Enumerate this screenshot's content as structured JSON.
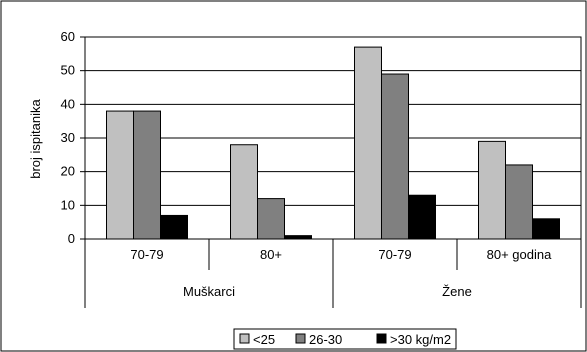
{
  "chart_data": {
    "type": "bar",
    "ylabel": "broj ispitanika",
    "xlabel": "",
    "title": "",
    "ylim": [
      0,
      60
    ],
    "yticks": [
      0,
      10,
      20,
      30,
      40,
      50,
      60
    ],
    "grid": "horizontal",
    "legend_position": "bottom",
    "categories": [
      "70-79",
      "80+",
      "70-79",
      "80+ godina"
    ],
    "groups": [
      {
        "label": "Muškarci",
        "categories": [
          0,
          1
        ]
      },
      {
        "label": "Žene",
        "categories": [
          2,
          3
        ]
      }
    ],
    "series": [
      {
        "name": "<25",
        "color": "#c0c0c0",
        "values": [
          38,
          28,
          57,
          29
        ]
      },
      {
        "name": "26-30",
        "color": "#808080",
        "values": [
          38,
          12,
          49,
          22
        ]
      },
      {
        "name": ">30 kg/m2",
        "color": "#000000",
        "values": [
          7,
          1,
          13,
          6
        ]
      }
    ]
  }
}
